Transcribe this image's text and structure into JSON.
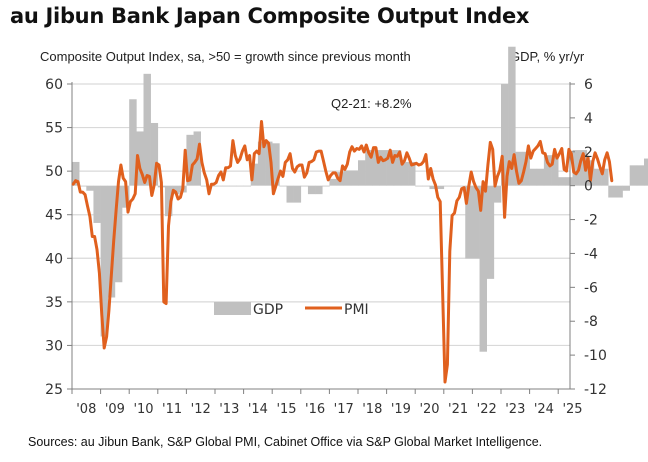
{
  "title": "au Jibun Bank Japan Composite Output Index",
  "subtitle_left": "Composite Output Index, sa, >50 = growth since previous month",
  "subtitle_right": "GDP, % yr/yr",
  "source": "Sources: au Jibun Bank, S&P Global PMI, Cabinet Office via S&P Global Market Intelligence.",
  "colors": {
    "pmi": "#e0601e",
    "gdp": "#c0c0c0",
    "grid": "#d9d9d9",
    "axis": "#808080"
  },
  "chart_data": {
    "type": "bar+line",
    "title": "au Jibun Bank Japan Composite Output Index",
    "left_axis": {
      "label": "Composite Output Index, sa, >50 = growth since previous month",
      "range": [
        25,
        60
      ],
      "ticks": [
        25,
        30,
        35,
        40,
        45,
        50,
        55,
        60
      ],
      "tick_labels": [
        "25",
        "30",
        "35",
        "40",
        "45",
        "50",
        "55",
        "60"
      ]
    },
    "right_axis": {
      "label": "GDP, % yr/yr",
      "range": [
        -12,
        6
      ],
      "ticks": [
        -12,
        -10,
        -8,
        -6,
        -4,
        -2,
        0,
        2,
        4,
        6
      ],
      "tick_labels": [
        "-12",
        "-10",
        "-8",
        "-6",
        "-4",
        "-2",
        "0",
        "2",
        "4",
        "6"
      ]
    },
    "x_axis": {
      "start_year": 2008,
      "end_year": 2025,
      "tick_labels": [
        "'08",
        "'09",
        "'10",
        "'11",
        "'12",
        "'13",
        "'14",
        "'15",
        "'16",
        "'17",
        "'18",
        "'19",
        "'20",
        "'21",
        "'22",
        "'23",
        "'24",
        "'25"
      ]
    },
    "grid": true,
    "legend": {
      "position": "bottom-center",
      "entries": [
        {
          "name": "GDP",
          "type": "bar"
        },
        {
          "name": "PMI",
          "type": "line"
        }
      ]
    },
    "annotations": [
      {
        "text": "Q2-21: +8.2%"
      }
    ],
    "series": [
      {
        "name": "GDP",
        "axis": "right",
        "frequency": "quarterly",
        "start": "2008-Q1",
        "values": [
          1.4,
          0.0,
          -0.3,
          -2.2,
          -8.9,
          -6.6,
          -5.7,
          -1.3,
          5.1,
          3.2,
          6.6,
          3.7,
          -0.1,
          -1.8,
          -0.5,
          -0.4,
          3.0,
          3.2,
          0.0,
          0.0,
          0.0,
          0.0,
          0.0,
          0.0,
          0.0,
          1.3,
          2.6,
          2.6,
          2.5,
          0.0,
          -1.0,
          -1.0,
          0.0,
          -0.5,
          -0.5,
          0.0,
          0.4,
          0.8,
          0.9,
          0.9,
          1.5,
          2.1,
          2.1,
          2.1,
          2.1,
          2.1,
          1.4,
          1.4,
          0.0,
          0.0,
          -0.2,
          -0.2,
          0.0,
          0.0,
          0.0,
          -4.3,
          -4.3,
          -9.8,
          -5.5,
          -1.0,
          6.0,
          8.2,
          2.0,
          2.0,
          1.0,
          1.0,
          1.8,
          1.8,
          0.5,
          0.5,
          2.1,
          2.1,
          1.5,
          1.0,
          1.0,
          -0.7,
          -0.7,
          -0.3,
          1.2,
          1.2,
          1.6,
          1.6,
          1.5,
          1.5
        ]
      },
      {
        "name": "PMI",
        "axis": "left",
        "frequency": "monthly",
        "start": "2008-01",
        "values": [
          48.5,
          48.9,
          48.8,
          47.6,
          47.6,
          47.3,
          46.0,
          44.8,
          42.5,
          42.5,
          41.0,
          38.3,
          33.5,
          29.7,
          31.0,
          34.0,
          38.0,
          42.0,
          45.5,
          48.8,
          50.7,
          49.2,
          48.8,
          45.3,
          46.5,
          46.8,
          47.4,
          51.8,
          50.3,
          49.6,
          48.7,
          49.5,
          49.4,
          47.2,
          48.4,
          50.9,
          50.7,
          48.7,
          35.0,
          34.8,
          43.7,
          46.5,
          47.8,
          47.6,
          46.8,
          47.0,
          48.0,
          52.4,
          48.9,
          49.0,
          50.7,
          51.0,
          51.4,
          53.1,
          51.0,
          49.8,
          49.0,
          47.4,
          48.5,
          48.5,
          48.7,
          49.5,
          49.9,
          49.0,
          50.4,
          50.4,
          50.6,
          53.5,
          51.8,
          51.0,
          51.4,
          52.3,
          52.9,
          51.3,
          51.8,
          49.0,
          52.0,
          52.3,
          52.0,
          55.7,
          52.8,
          53.5,
          53.2,
          51.0,
          47.4,
          48.3,
          49.2,
          50.0,
          49.4,
          51.0,
          51.3,
          52.0,
          50.3,
          49.9,
          50.5,
          50.7,
          50.7,
          49.3,
          49.8,
          51.0,
          51.1,
          51.3,
          52.2,
          52.3,
          52.3,
          51.2,
          50.0,
          49.0,
          49.5,
          49.8,
          49.8,
          49.2,
          48.9,
          50.6,
          50.2,
          50.8,
          52.2,
          52.8,
          52.3,
          52.6,
          52.5,
          52.9,
          52.2,
          53.0,
          52.1,
          51.6,
          52.7,
          52.7,
          51.0,
          51.6,
          51.2,
          51.3,
          51.5,
          52.4,
          51.0,
          51.8,
          51.7,
          52.2,
          50.8,
          51.2,
          52.1,
          51.5,
          50.7,
          50.8,
          50.9,
          50.7,
          50.8,
          51.1,
          51.9,
          49.1,
          50.3,
          49.1,
          48.4,
          47.0,
          46.5,
          36.2,
          25.8,
          27.8,
          40.8,
          44.9,
          45.2,
          46.6,
          47.0,
          48.0,
          48.1,
          46.3,
          48.3,
          49.9,
          48.8,
          48.1,
          47.7,
          45.5,
          48.8,
          47.7,
          50.7,
          53.3,
          52.5,
          48.3,
          49.4,
          50.1,
          51.7,
          44.7,
          49.4,
          51.1,
          50.3,
          51.9,
          50.0,
          48.6,
          48.9,
          49.9,
          51.1,
          52.9,
          51.5,
          52.3,
          52.6,
          52.9,
          53.4,
          52.1,
          52.0,
          51.0,
          50.6,
          50.8,
          52.5,
          51.5,
          52.0,
          52.6,
          50.2,
          50.0,
          52.5,
          52.0,
          49.9,
          49.7,
          50.1,
          51.2,
          52.0,
          50.1,
          51.6,
          48.9,
          51.1,
          52.1,
          51.4,
          50.5,
          49.7,
          51.3,
          52.1,
          51.1,
          48.9
        ]
      }
    ]
  }
}
